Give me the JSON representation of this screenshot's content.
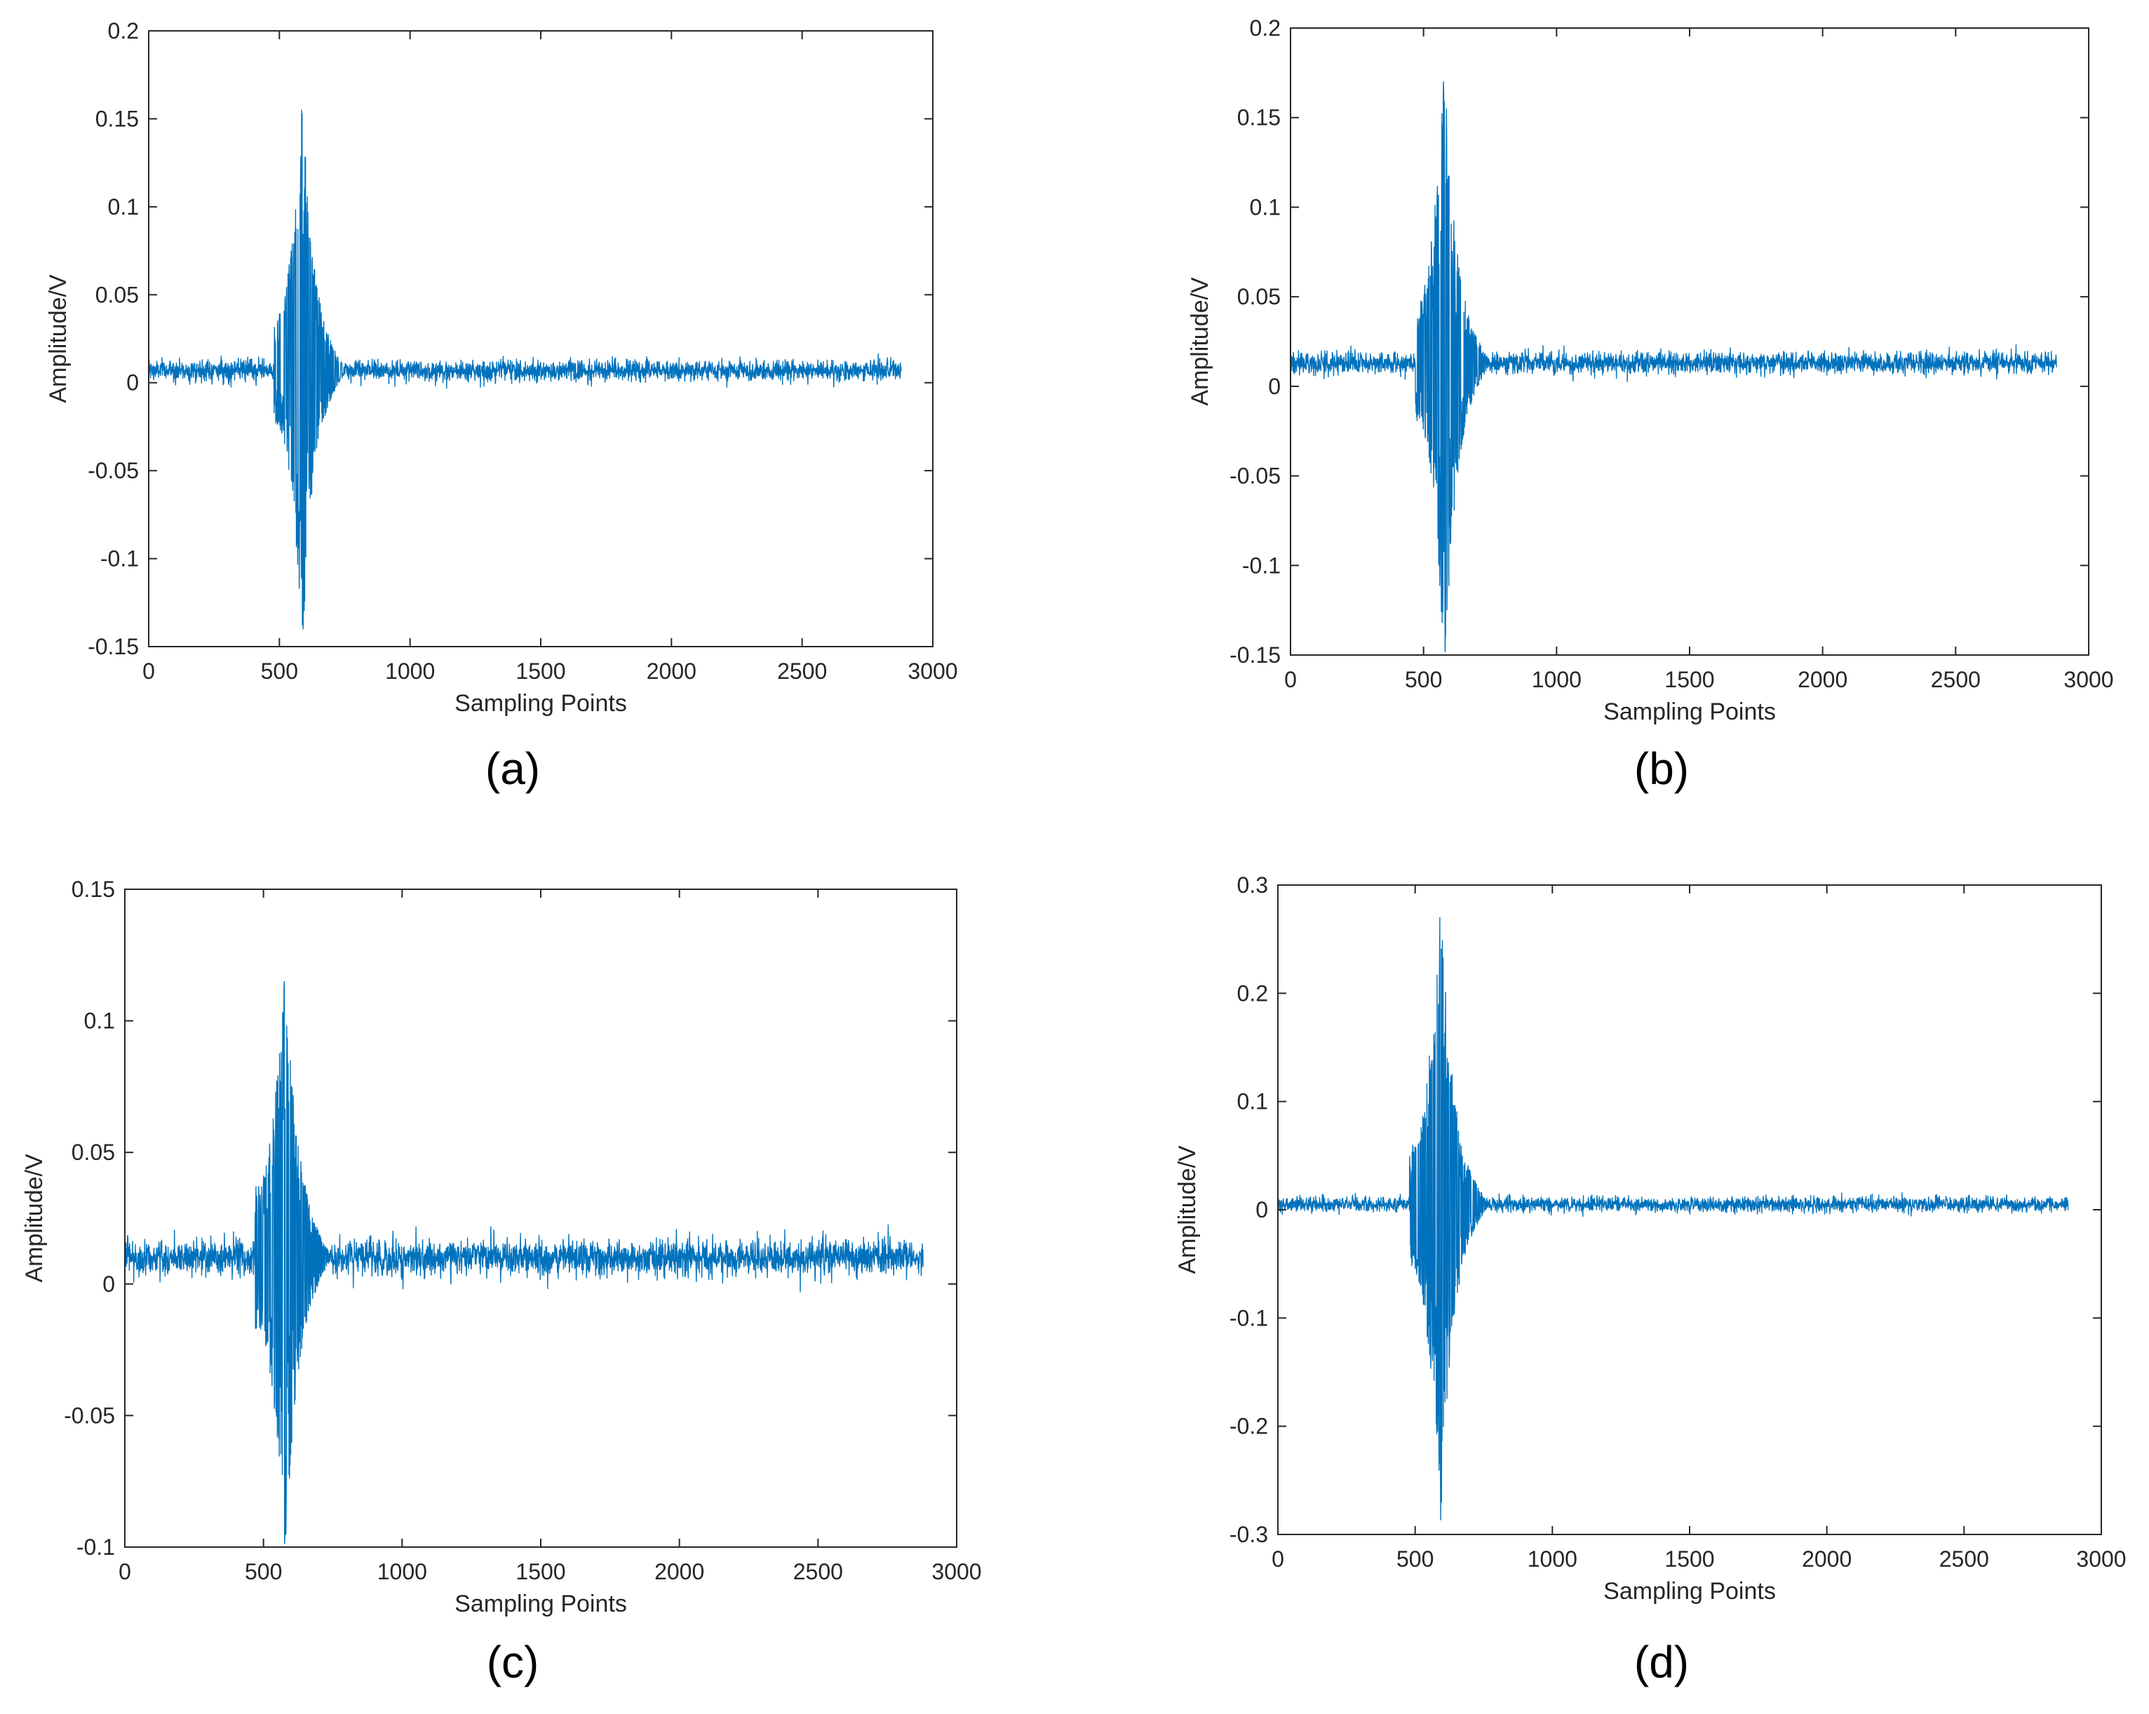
{
  "colors": {
    "series": "#0072bd",
    "axis": "#262626",
    "background": "#ffffff"
  },
  "chart_data": [
    {
      "type": "line",
      "panel_label": "(a)",
      "xlabel": "Sampling Points",
      "ylabel": "Amplitude/V",
      "xlim": [
        0,
        3000
      ],
      "ylim": [
        -0.15,
        0.2
      ],
      "xticks": [
        0,
        500,
        1000,
        1500,
        2000,
        2500,
        3000
      ],
      "xtick_labels": [
        "0",
        "500",
        "1000",
        "1500",
        "2000",
        "2500",
        "3000"
      ],
      "yticks": [
        -0.15,
        -0.1,
        -0.05,
        0,
        0.05,
        0.1,
        0.15,
        0.2
      ],
      "ytick_labels": [
        "-0.15",
        "-0.1",
        "-0.05",
        "0",
        "0.05",
        "0.1",
        "0.15",
        "0.2"
      ],
      "grid": false,
      "series": [
        {
          "n_points": 2880,
          "baseline": 0.007,
          "noise_amplitude": 0.006,
          "burst": {
            "start": 480,
            "end": 750,
            "peak_position": 585,
            "peak_max": 0.155,
            "peak_min": -0.14,
            "shoulder_amplitude": 0.05
          }
        }
      ]
    },
    {
      "type": "line",
      "panel_label": "(b)",
      "xlabel": "Sampling Points",
      "ylabel": "Amplitude/V",
      "xlim": [
        0,
        3000
      ],
      "ylim": [
        -0.15,
        0.2
      ],
      "xticks": [
        0,
        500,
        1000,
        1500,
        2000,
        2500,
        3000
      ],
      "xtick_labels": [
        "0",
        "500",
        "1000",
        "1500",
        "2000",
        "2500",
        "3000"
      ],
      "yticks": [
        -0.15,
        -0.1,
        -0.05,
        0,
        0.05,
        0.1,
        0.15,
        0.2
      ],
      "ytick_labels": [
        "-0.15",
        "-0.1",
        "-0.05",
        "0",
        "0.05",
        "0.1",
        "0.15",
        "0.2"
      ],
      "grid": false,
      "series": [
        {
          "n_points": 2880,
          "baseline": 0.013,
          "noise_amplitude": 0.006,
          "burst": {
            "start": 470,
            "end": 745,
            "peak_position": 575,
            "peak_max": 0.17,
            "peak_min": -0.15,
            "shoulder_amplitude": 0.055
          }
        }
      ]
    },
    {
      "type": "line",
      "panel_label": "(c)",
      "xlabel": "Sampling Points",
      "ylabel": "Amplitude/V",
      "xlim": [
        0,
        3000
      ],
      "ylim": [
        -0.1,
        0.15
      ],
      "xticks": [
        0,
        500,
        1000,
        1500,
        2000,
        2500,
        3000
      ],
      "xtick_labels": [
        "0",
        "500",
        "1000",
        "1500",
        "2000",
        "2500",
        "3000"
      ],
      "yticks": [
        -0.1,
        -0.05,
        0,
        0.05,
        0.1,
        0.15
      ],
      "ytick_labels": [
        "-0.1",
        "-0.05",
        "0",
        "0.05",
        "0.1",
        "0.15"
      ],
      "grid": false,
      "series": [
        {
          "n_points": 2880,
          "baseline": 0.01,
          "noise_amplitude": 0.007,
          "burst": {
            "start": 470,
            "end": 740,
            "peak_position": 575,
            "peak_max": 0.115,
            "peak_min": -0.095,
            "shoulder_amplitude": 0.045
          }
        }
      ]
    },
    {
      "type": "line",
      "panel_label": "(d)",
      "xlabel": "Sampling Points",
      "ylabel": "Amplitude/V",
      "xlim": [
        0,
        3000
      ],
      "ylim": [
        -0.3,
        0.3
      ],
      "xticks": [
        0,
        500,
        1000,
        1500,
        2000,
        2500,
        3000
      ],
      "xtick_labels": [
        "0",
        "500",
        "1000",
        "1500",
        "2000",
        "2500",
        "3000"
      ],
      "yticks": [
        -0.3,
        -0.2,
        -0.1,
        0,
        0.1,
        0.2,
        0.3
      ],
      "ytick_labels": [
        "-0.3",
        "-0.2",
        "-0.1",
        "0",
        "0.1",
        "0.2",
        "0.3"
      ],
      "grid": false,
      "series": [
        {
          "n_points": 2880,
          "baseline": 0.005,
          "noise_amplitude": 0.007,
          "burst": {
            "start": 480,
            "end": 760,
            "peak_position": 590,
            "peak_max": 0.27,
            "peak_min": -0.27,
            "shoulder_amplitude": 0.09
          }
        }
      ]
    }
  ]
}
